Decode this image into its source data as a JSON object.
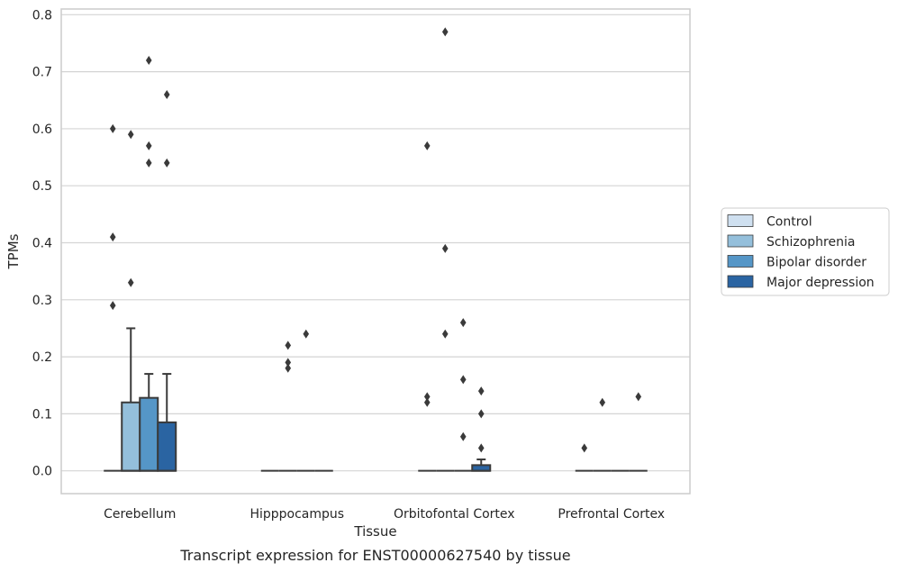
{
  "chart_data": {
    "type": "box",
    "title": "",
    "xlabel": "Tissue",
    "ylabel": "TPMs",
    "caption": "Transcript expression for ENST00000627540 by tissue",
    "ylim": [
      -0.04,
      0.81
    ],
    "yticks": [
      "0.0",
      "0.1",
      "0.2",
      "0.3",
      "0.4",
      "0.5",
      "0.6",
      "0.7",
      "0.8"
    ],
    "grid": "horizontal",
    "legend_position": "right",
    "categories": [
      "Cerebellum",
      "Hipppocampus",
      "Orbitofontal Cortex",
      "Prefrontal Cortex"
    ],
    "series": [
      {
        "name": "Control",
        "color": "#cfe0f0",
        "boxes": [
          {
            "category": "Cerebellum",
            "q1": 0,
            "median": 0,
            "q3": 0,
            "whisker_low": 0,
            "whisker_high": 0,
            "outliers": [
              0.29,
              0.41,
              0.6
            ]
          },
          {
            "category": "Hipppocampus",
            "q1": 0,
            "median": 0,
            "q3": 0,
            "whisker_low": 0,
            "whisker_high": 0,
            "outliers": []
          },
          {
            "category": "Orbitofontal Cortex",
            "q1": 0,
            "median": 0,
            "q3": 0,
            "whisker_low": 0,
            "whisker_high": 0,
            "outliers": [
              0.12,
              0.13,
              0.57
            ]
          },
          {
            "category": "Prefrontal Cortex",
            "q1": 0,
            "median": 0,
            "q3": 0,
            "whisker_low": 0,
            "whisker_high": 0,
            "outliers": [
              0.04
            ]
          }
        ]
      },
      {
        "name": "Schizophrenia",
        "color": "#94bfdb",
        "boxes": [
          {
            "category": "Cerebellum",
            "q1": 0,
            "median": 0,
            "q3": 0.12,
            "whisker_low": 0,
            "whisker_high": 0.25,
            "outliers": [
              0.33,
              0.59
            ]
          },
          {
            "category": "Hipppocampus",
            "q1": 0,
            "median": 0,
            "q3": 0,
            "whisker_low": 0,
            "whisker_high": 0,
            "outliers": [
              0.18,
              0.19,
              0.22
            ]
          },
          {
            "category": "Orbitofontal Cortex",
            "q1": 0,
            "median": 0,
            "q3": 0,
            "whisker_low": 0,
            "whisker_high": 0,
            "outliers": [
              0.24,
              0.39,
              0.77
            ]
          },
          {
            "category": "Prefrontal Cortex",
            "q1": 0,
            "median": 0,
            "q3": 0,
            "whisker_low": 0,
            "whisker_high": 0,
            "outliers": [
              0.12
            ]
          }
        ]
      },
      {
        "name": "Bipolar disorder",
        "color": "#5596c7",
        "boxes": [
          {
            "category": "Cerebellum",
            "q1": 0,
            "median": 0,
            "q3": 0.128,
            "whisker_low": 0,
            "whisker_high": 0.17,
            "outliers": [
              0.54,
              0.57,
              0.72
            ]
          },
          {
            "category": "Hipppocampus",
            "q1": 0,
            "median": 0,
            "q3": 0,
            "whisker_low": 0,
            "whisker_high": 0,
            "outliers": [
              0.24
            ]
          },
          {
            "category": "Orbitofontal Cortex",
            "q1": 0,
            "median": 0,
            "q3": 0,
            "whisker_low": 0,
            "whisker_high": 0,
            "outliers": [
              0.06,
              0.16,
              0.26
            ]
          },
          {
            "category": "Prefrontal Cortex",
            "q1": 0,
            "median": 0,
            "q3": 0,
            "whisker_low": 0,
            "whisker_high": 0,
            "outliers": []
          }
        ]
      },
      {
        "name": "Major depression",
        "color": "#2a64a2",
        "boxes": [
          {
            "category": "Cerebellum",
            "q1": 0,
            "median": 0,
            "q3": 0.085,
            "whisker_low": 0,
            "whisker_high": 0.17,
            "outliers": [
              0.54,
              0.66
            ]
          },
          {
            "category": "Hipppocampus",
            "q1": 0,
            "median": 0,
            "q3": 0,
            "whisker_low": 0,
            "whisker_high": 0,
            "outliers": []
          },
          {
            "category": "Orbitofontal Cortex",
            "q1": 0,
            "median": 0,
            "q3": 0.01,
            "whisker_low": 0,
            "whisker_high": 0.02,
            "outliers": [
              0.04,
              0.1,
              0.14
            ]
          },
          {
            "category": "Prefrontal Cortex",
            "q1": 0,
            "median": 0,
            "q3": 0,
            "whisker_low": 0,
            "whisker_high": 0,
            "outliers": [
              0.13
            ]
          }
        ]
      }
    ]
  }
}
